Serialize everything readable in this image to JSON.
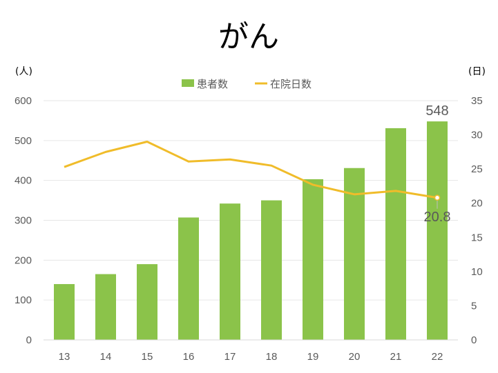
{
  "chart_data": {
    "type": "bar",
    "title": "がん",
    "categories": [
      "13",
      "14",
      "15",
      "16",
      "17",
      "18",
      "19",
      "20",
      "21",
      "22"
    ],
    "series": [
      {
        "name": "患者数",
        "type": "bar",
        "axis": "left",
        "color": "#8bc34a",
        "values": [
          140,
          165,
          190,
          307,
          342,
          350,
          403,
          431,
          531,
          548
        ],
        "data_labels": {
          "9": "548"
        }
      },
      {
        "name": "在院日数",
        "type": "line",
        "axis": "right",
        "color": "#f0bc2a",
        "values": [
          25.3,
          27.5,
          29.0,
          26.1,
          26.4,
          25.5,
          22.7,
          21.3,
          21.8,
          20.8
        ],
        "data_labels": {
          "9": "20.8"
        }
      }
    ],
    "y_left": {
      "unit": "(人)",
      "ylim": [
        0,
        600
      ],
      "ticks": [
        "0",
        "100",
        "200",
        "300",
        "400",
        "500",
        "600"
      ]
    },
    "y_right": {
      "unit": "(日)",
      "ylim": [
        0,
        35
      ],
      "ticks": [
        "0",
        "5",
        "10",
        "15",
        "20",
        "25",
        "30",
        "35"
      ]
    },
    "grid": true,
    "legend": "top-center"
  }
}
